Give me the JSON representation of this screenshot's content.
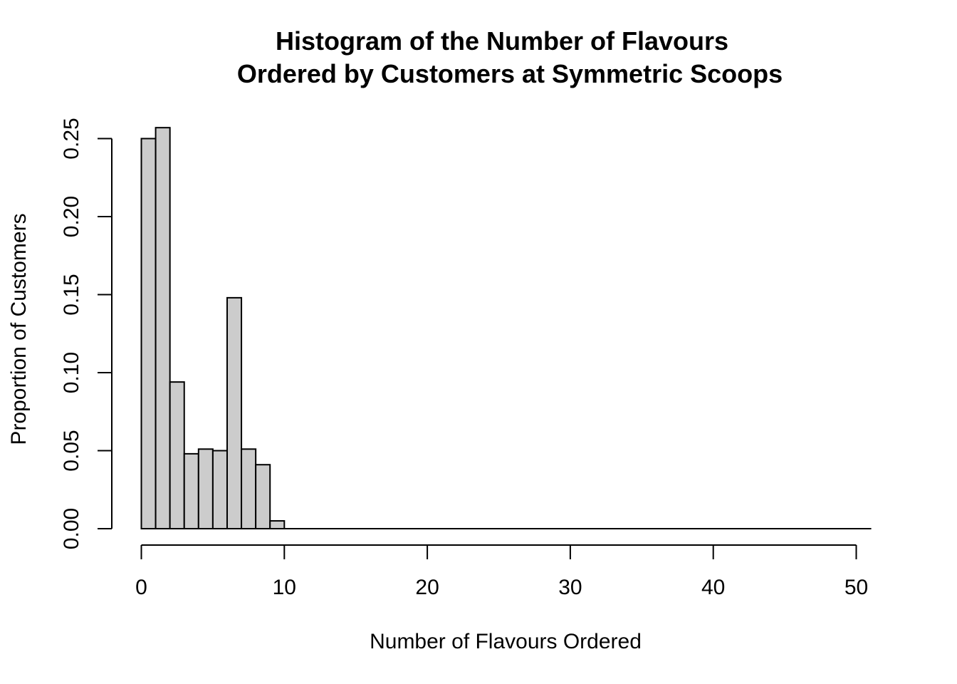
{
  "chart_data": {
    "type": "bar",
    "title": [
      "Histogram of the Number of Flavours",
      "Ordered by Customers at Symmetric Scoops"
    ],
    "xlabel": "Number of Flavours Ordered",
    "ylabel": "Proportion of Customers",
    "bin_width": 1,
    "x": [
      0,
      1,
      2,
      3,
      4,
      5,
      6,
      7,
      8,
      9,
      10,
      11,
      12,
      13,
      14,
      15,
      16,
      17,
      18,
      19,
      20,
      21,
      22,
      23,
      24,
      25,
      26,
      27,
      28,
      29,
      30,
      31,
      32,
      33,
      34,
      35,
      36,
      37,
      38,
      39,
      40,
      41,
      42,
      43,
      44,
      45,
      46,
      47,
      48,
      49
    ],
    "values": [
      0.25,
      0.257,
      0.094,
      0.048,
      0.051,
      0.05,
      0.148,
      0.051,
      0.041,
      0.005,
      0,
      0,
      0,
      0,
      0,
      0,
      0,
      0,
      0,
      0,
      0,
      0,
      0,
      0,
      0,
      0,
      0,
      0,
      0,
      0,
      0,
      0,
      0,
      0,
      0,
      0,
      0,
      0,
      0,
      0,
      0,
      0,
      0,
      0,
      0,
      0,
      0,
      0,
      0,
      0
    ],
    "xlim": [
      -1,
      51
    ],
    "ylim": [
      0,
      0.25
    ],
    "x_ticks": [
      0,
      10,
      20,
      30,
      40,
      50
    ],
    "x_tick_labels": [
      "0",
      "10",
      "20",
      "30",
      "40",
      "50"
    ],
    "y_ticks": [
      0,
      0.05,
      0.1,
      0.15,
      0.2,
      0.25
    ],
    "y_tick_labels": [
      "0.00",
      "0.05",
      "0.10",
      "0.15",
      "0.20",
      "0.25"
    ],
    "grid": false,
    "legend": "none",
    "colors": {
      "bar_fill": "#cccccc",
      "bar_stroke": "#000000",
      "axis": "#000000",
      "background": "#ffffff"
    }
  }
}
